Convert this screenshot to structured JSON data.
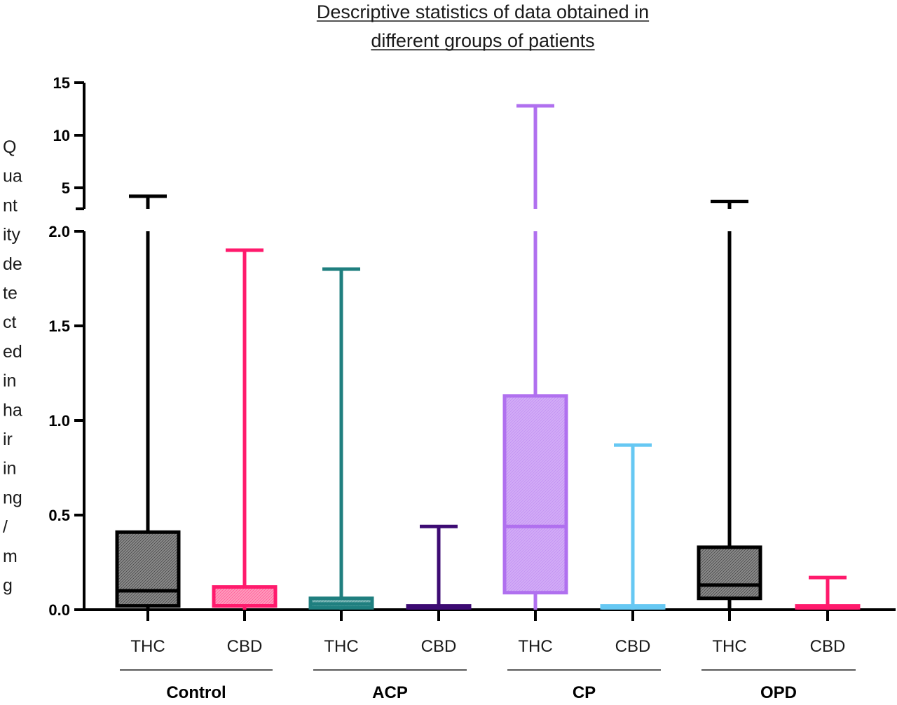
{
  "chart_data": {
    "type": "box",
    "title": "Descriptive statistics of data obtained in different groups of patients",
    "title_lines": [
      "Descriptive statistics of data obtained in",
      "different groups of patients"
    ],
    "ylabel": "Quantity detected in hair in ng/mg",
    "ylabel_lines": [
      "Q",
      "ua",
      "nt",
      "ity",
      "de",
      "te",
      "ct",
      "ed",
      "in",
      "ha",
      "ir",
      "in",
      "ng",
      "/",
      "m",
      "g"
    ],
    "y_axis": {
      "scale": "segmented (broken axis)",
      "lower_segment": {
        "range": [
          0.0,
          2.0
        ],
        "ticks": [
          "0.0",
          "0.5",
          "1.0",
          "1.5",
          "2.0"
        ]
      },
      "upper_segment": {
        "range": [
          3,
          15
        ],
        "ticks": [
          "5",
          "10",
          "15"
        ]
      }
    },
    "groups": [
      {
        "name": "Control",
        "boxes": [
          0,
          1
        ]
      },
      {
        "name": "ACP",
        "boxes": [
          2,
          3
        ]
      },
      {
        "name": "CP",
        "boxes": [
          4,
          5
        ]
      },
      {
        "name": "OPD",
        "boxes": [
          6,
          7
        ]
      }
    ],
    "boxes": [
      {
        "label": "THC",
        "group": "Control",
        "color": "#000000",
        "fill": "#8a8a8a",
        "min": 0.0,
        "q1": 0.02,
        "median": 0.1,
        "q3": 0.41,
        "max": 4.2
      },
      {
        "label": "CBD",
        "group": "Control",
        "color": "#ff1a6c",
        "fill": "#ff9abd",
        "min": 0.0,
        "q1": 0.02,
        "median": 0.02,
        "q3": 0.12,
        "max": 1.9
      },
      {
        "label": "THC",
        "group": "ACP",
        "color": "#1f7f7f",
        "fill": "#7fb8b8",
        "min": 0.0,
        "q1": 0.01,
        "median": 0.03,
        "q3": 0.06,
        "max": 1.8
      },
      {
        "label": "CBD",
        "group": "ACP",
        "color": "#3d0b73",
        "fill": "#8a6fa6",
        "min": 0.0,
        "q1": 0.01,
        "median": 0.01,
        "q3": 0.02,
        "max": 0.44
      },
      {
        "label": "THC",
        "group": "CP",
        "color": "#b070ef",
        "fill": "#d2acf6",
        "min": 0.0,
        "q1": 0.09,
        "median": 0.44,
        "q3": 1.13,
        "max": 12.8
      },
      {
        "label": "CBD",
        "group": "CP",
        "color": "#66c8f3",
        "fill": "#b8e5f9",
        "min": 0.0,
        "q1": 0.01,
        "median": 0.01,
        "q3": 0.02,
        "max": 0.87
      },
      {
        "label": "THC",
        "group": "OPD",
        "color": "#000000",
        "fill": "#8a8a8a",
        "min": 0.0,
        "q1": 0.06,
        "median": 0.13,
        "q3": 0.33,
        "max": 3.7
      },
      {
        "label": "CBD",
        "group": "OPD",
        "color": "#ff1a6c",
        "fill": "#ff9abd",
        "min": 0.0,
        "q1": 0.01,
        "median": 0.01,
        "q3": 0.02,
        "max": 0.17
      }
    ],
    "grid": false,
    "legend": "none"
  }
}
